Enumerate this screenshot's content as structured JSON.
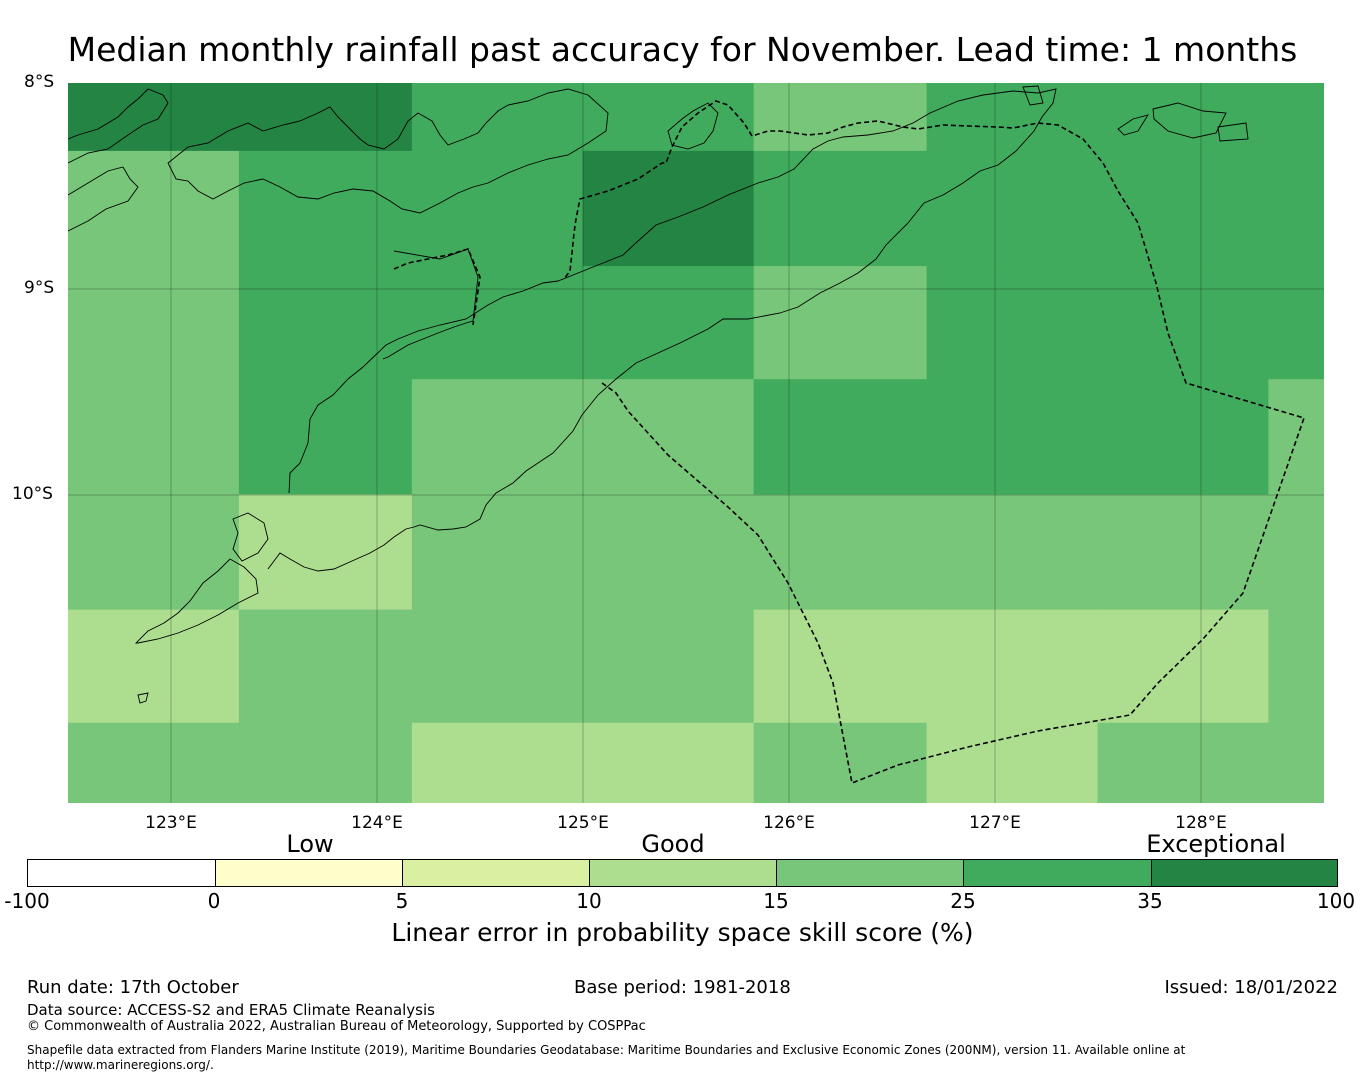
{
  "title": "Median monthly rainfall past accuracy for November. Lead time: 1 months",
  "map": {
    "lat_labels": [
      "8°S",
      "9°S",
      "10°S"
    ],
    "lon_labels": [
      "123°E",
      "124°E",
      "125°E",
      "126°E",
      "127°E",
      "128°E"
    ],
    "extent": {
      "lon_min": 122.5,
      "lon_max": 128.6,
      "lat_top": -8.0,
      "lat_bottom": -11.5
    },
    "skill_grid": {
      "lon_edges": [
        122.5,
        123.33,
        124.17,
        125.0,
        125.83,
        126.67,
        127.5,
        128.33,
        128.6
      ],
      "lat_edges": [
        -8.0,
        -8.33,
        -8.89,
        -9.44,
        -10.0,
        -10.56,
        -11.11,
        -11.5
      ],
      "values": [
        [
          37,
          37,
          30,
          30,
          20,
          30,
          30,
          30
        ],
        [
          20,
          30,
          30,
          37,
          30,
          30,
          30,
          30
        ],
        [
          20,
          30,
          30,
          30,
          20,
          30,
          30,
          30
        ],
        [
          20,
          30,
          20,
          20,
          30,
          30,
          30,
          20
        ],
        [
          20,
          13,
          20,
          20,
          20,
          20,
          20,
          20
        ],
        [
          13,
          20,
          20,
          20,
          13,
          13,
          13,
          20
        ],
        [
          20,
          20,
          13,
          13,
          20,
          13,
          20,
          20
        ]
      ]
    }
  },
  "legend": {
    "categories": [
      "Low",
      "Good",
      "Exceptional"
    ],
    "ticks": [
      "-100",
      "0",
      "5",
      "10",
      "15",
      "25",
      "35",
      "100"
    ],
    "colors": [
      "#ffffff",
      "#ffffcc",
      "#d9f0a3",
      "#addd8e",
      "#78c679",
      "#41ab5d",
      "#238443"
    ],
    "label": "Linear error in probability space skill score (%)"
  },
  "footer": {
    "run_date": "Run date: 17th October",
    "base_period": "Base period: 1981-2018",
    "issued": "Issued: 18/01/2022",
    "data_source": "Data source: ACCESS-S2 and ERA5 Climate Reanalysis",
    "copyright": "© Commonwealth of Australia 2022, Australian Bureau of Meteorology, Supported by COSPPac",
    "shapefile_line1": "Shapefile data extracted from Flanders Marine Institute (2019), Maritime Boundaries Geodatabase: Maritime Boundaries and Exclusive Economic Zones (200NM), version 11. Available online at",
    "shapefile_line2": "http://www.marineregions.org/."
  }
}
